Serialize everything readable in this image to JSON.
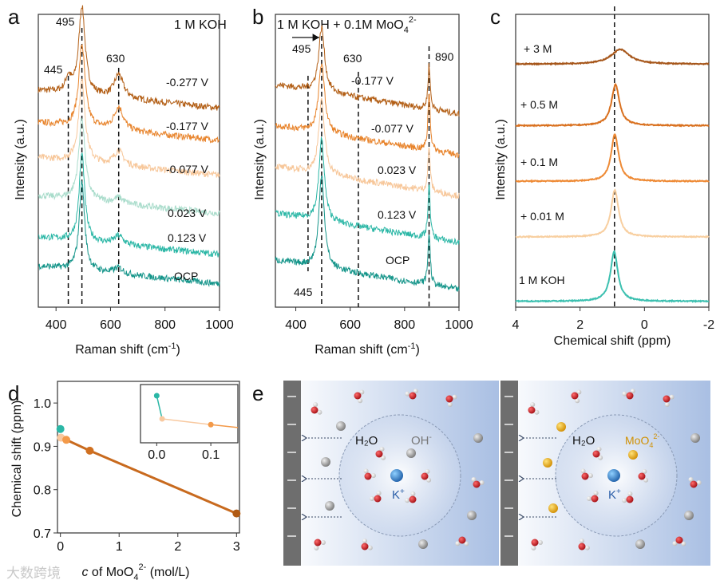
{
  "panels": {
    "a": "a",
    "b": "b",
    "c": "c",
    "d": "d",
    "e": "e"
  },
  "watermark": "大数跨境",
  "chart_data": [
    {
      "id": "a",
      "type": "line",
      "title": "1 M KOH",
      "xlabel": {
        "main": "Raman shift (cm",
        "sup": "-1",
        "end": ")"
      },
      "ylabel": "Intensity (a.u.)",
      "xlim": [
        335,
        1000
      ],
      "xticks": [
        400,
        600,
        800,
        1000
      ],
      "peak_labels": [
        "445",
        "495",
        "630"
      ],
      "peak_positions": [
        445,
        495,
        630
      ],
      "series": [
        {
          "name": "-0.277 V",
          "color": "#b35f16",
          "offset": 68,
          "peaks": [
            [
              445,
              5,
              12
            ],
            [
              495,
              30,
              14
            ],
            [
              630,
              8,
              20
            ]
          ]
        },
        {
          "name": "-0.177 V",
          "color": "#e8842c",
          "offset": 57,
          "peaks": [
            [
              495,
              28,
              14
            ],
            [
              630,
              8,
              20
            ]
          ]
        },
        {
          "name": "-0.077 V",
          "color": "#f7c79a",
          "offset": 45,
          "peaks": [
            [
              495,
              28,
              14
            ],
            [
              630,
              5,
              20
            ]
          ]
        },
        {
          "name": "0.023 V",
          "color": "#a9dccb",
          "offset": 32,
          "peaks": [
            [
              495,
              28,
              14
            ],
            [
              630,
              2,
              20
            ]
          ]
        },
        {
          "name": "0.123 V",
          "color": "#2bb7a6",
          "offset": 18,
          "peaks": [
            [
              495,
              30,
              12
            ],
            [
              630,
              3,
              20
            ]
          ]
        },
        {
          "name": "OCP",
          "color": "#15958a",
          "offset": 8,
          "peaks": [
            [
              495,
              30,
              12
            ],
            [
              630,
              2,
              20
            ]
          ]
        }
      ]
    },
    {
      "id": "b",
      "type": "line",
      "title": {
        "main": "1 M KOH + 0.1M MoO",
        "sub": "4",
        "sup": "2-"
      },
      "xlabel": {
        "main": "Raman shift (cm",
        "sup": "-1",
        "end": ")"
      },
      "ylabel": "Intensity (a.u.)",
      "xlim": [
        325,
        1000
      ],
      "xticks": [
        400,
        600,
        800,
        1000
      ],
      "peak_labels": [
        "445",
        "495",
        "630",
        "890"
      ],
      "peak_positions": [
        445,
        495,
        630,
        890
      ],
      "series": [
        {
          "name": "-0.177 V",
          "color": "#b35f16",
          "offset": 66,
          "peaks": [
            [
              495,
              22,
              13
            ],
            [
              890,
              15,
              5
            ]
          ]
        },
        {
          "name": "-0.077 V",
          "color": "#e8842c",
          "offset": 52,
          "peaks": [
            [
              495,
              24,
              13
            ],
            [
              890,
              20,
              5
            ]
          ]
        },
        {
          "name": "0.023 V",
          "color": "#f7c79a",
          "offset": 38,
          "peaks": [
            [
              495,
              25,
              13
            ],
            [
              890,
              15,
              5
            ]
          ]
        },
        {
          "name": "0.123 V",
          "color": "#2bb7a6",
          "offset": 22,
          "peaks": [
            [
              495,
              28,
              12
            ],
            [
              890,
              18,
              5
            ]
          ]
        },
        {
          "name": "OCP",
          "color": "#15958a",
          "offset": 6,
          "peaks": [
            [
              495,
              32,
              12
            ],
            [
              890,
              18,
              5
            ]
          ]
        }
      ]
    },
    {
      "id": "c",
      "type": "line",
      "xlabel": "Chemical shift (ppm)",
      "ylabel": "Intensity (a.u.)",
      "xlim": [
        4,
        -2
      ],
      "xticks": [
        4,
        2,
        0,
        -2
      ],
      "reference_line": 0.93,
      "series": [
        {
          "name": "+ 3 M",
          "color": "#a6561a",
          "offset": 83,
          "peaks": [
            [
              0.75,
              5,
              0.35
            ]
          ]
        },
        {
          "name": "+ 0.5 M",
          "color": "#d9701e",
          "offset": 62,
          "peaks": [
            [
              0.9,
              14,
              0.15
            ]
          ]
        },
        {
          "name": "+ 0.1 M",
          "color": "#ee8a35",
          "offset": 43,
          "peaks": [
            [
              0.92,
              16,
              0.14
            ]
          ]
        },
        {
          "name": "+ 0.01 M",
          "color": "#f8cfa0",
          "offset": 24,
          "peaks": [
            [
              0.92,
              16,
              0.14
            ]
          ]
        },
        {
          "name": "1 M KOH",
          "color": "#3cc0b0",
          "offset": 2,
          "peaks": [
            [
              0.94,
              17,
              0.14
            ]
          ]
        }
      ]
    },
    {
      "id": "d",
      "type": "scatter",
      "xlabel": {
        "italic": "c",
        "main": " of MoO",
        "sub": "4",
        "sup": "2-",
        "end": " (mol/L)"
      },
      "ylabel": "Chemical shift (ppm)",
      "xlim": [
        -0.05,
        3.05
      ],
      "ylim": [
        0.7,
        1.05
      ],
      "xticks": [
        0,
        1,
        2,
        3
      ],
      "yticks": [
        0.7,
        0.8,
        0.9,
        1.0
      ],
      "points": [
        {
          "x": 0,
          "y": 0.94,
          "color": "#2bb7a6"
        },
        {
          "x": 0.01,
          "y": 0.92,
          "color": "#f8c9a0"
        },
        {
          "x": 0.1,
          "y": 0.915,
          "color": "#f39a4a"
        },
        {
          "x": 0.5,
          "y": 0.89,
          "color": "#d07020"
        },
        {
          "x": 3,
          "y": 0.745,
          "color": "#b05a14"
        }
      ],
      "inset": {
        "xlim": [
          -0.03,
          0.15
        ],
        "xticks": [
          "0.0",
          "0.1"
        ],
        "xtick_values": [
          0,
          0.1
        ]
      }
    }
  ],
  "schematic": {
    "left": {
      "water": "H₂O",
      "anion": "OH",
      "anion_sup": "-",
      "cation": "K",
      "cation_sup": "+"
    },
    "right": {
      "water": "H₂O",
      "anion": "MoO",
      "anion_sub": "4",
      "anion_sup": "2-",
      "cation": "K",
      "cation_sup": "+"
    },
    "colors": {
      "oxygen": "#c0141c",
      "hydrogen": "#eeeeee",
      "hydroxide": "#9a9a9a",
      "molybdate": "#e8a818",
      "potassium": "#3a7fc8",
      "electrode": "#6e6e6e"
    }
  }
}
